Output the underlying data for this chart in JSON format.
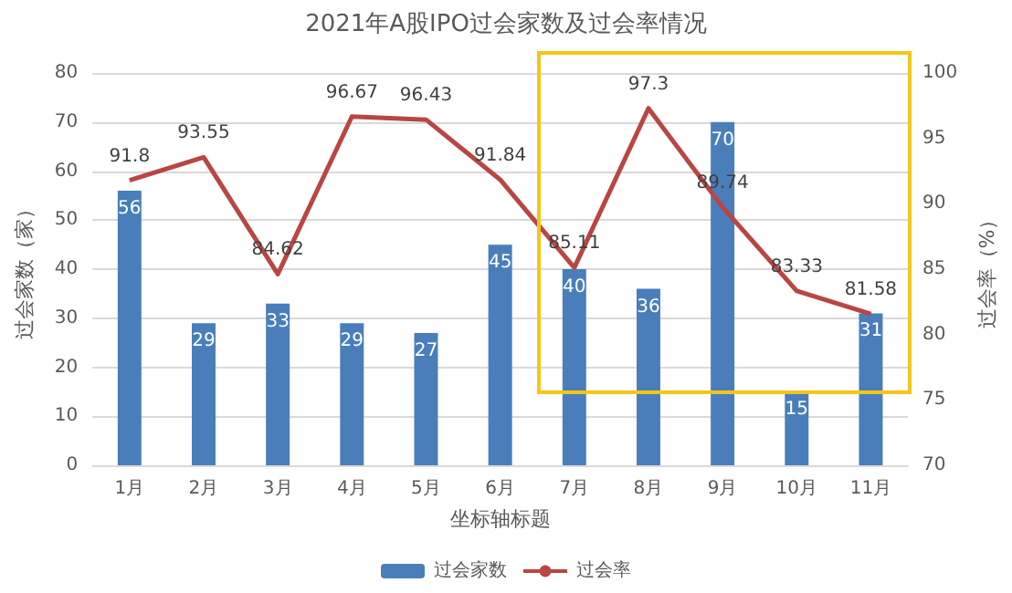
{
  "chart_data": {
    "type": "bar",
    "title": "2021年A股IPO过会家数及过会率情况",
    "xlabel": "坐标轴标题",
    "ylabel": "过会家数（家）",
    "y2label": "过会率（%）",
    "categories": [
      "1月",
      "2月",
      "3月",
      "4月",
      "5月",
      "6月",
      "7月",
      "8月",
      "9月",
      "10月",
      "11月"
    ],
    "series": [
      {
        "name": "过会家数",
        "color": "#4a7ebb",
        "values": [
          56,
          29,
          33,
          29,
          27,
          45,
          40,
          36,
          70,
          15,
          31
        ]
      },
      {
        "name": "过会率",
        "type": "line",
        "axis": "y2",
        "color": "#b94643",
        "values": [
          91.8,
          93.55,
          84.62,
          96.67,
          96.43,
          91.84,
          85.11,
          97.3,
          89.74,
          83.33,
          81.58
        ]
      }
    ],
    "ylim": [
      0,
      80
    ],
    "yticks": [
      0,
      10,
      20,
      30,
      40,
      50,
      60,
      70,
      80
    ],
    "y2lim": [
      70,
      100
    ],
    "y2ticks": [
      70,
      75,
      80,
      85,
      90,
      95,
      100
    ],
    "data_labels": true,
    "grid": "y",
    "legend": "bottom",
    "marker": "none",
    "line_style": "solid"
  }
}
